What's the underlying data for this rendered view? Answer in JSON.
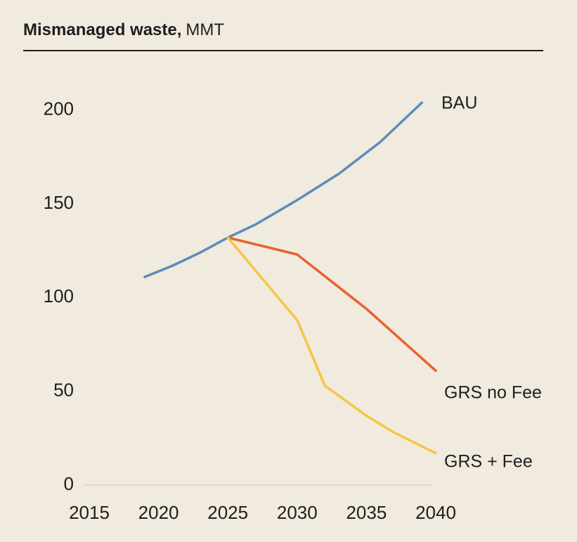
{
  "chart_data": {
    "type": "line",
    "title": "Mismanaged waste,",
    "subtitle": "MMT",
    "xlim": [
      2015,
      2040
    ],
    "xticks": [
      2015,
      2020,
      2025,
      2030,
      2035,
      2040
    ],
    "ylim": [
      0,
      210
    ],
    "yticks": [
      0,
      50,
      100,
      150,
      200
    ],
    "series": [
      {
        "name": "BAU",
        "color": "#5b8db8",
        "x": [
          2019,
          2021,
          2023,
          2025,
          2027,
          2030,
          2033,
          2036,
          2039
        ],
        "values": [
          111,
          117,
          124,
          132,
          139,
          152,
          166,
          183,
          204
        ]
      },
      {
        "name": "GRS no Fee",
        "color": "#e8622c",
        "x": [
          2025,
          2030,
          2035,
          2040
        ],
        "values": [
          132,
          123,
          94,
          61
        ]
      },
      {
        "name": "GRS + Fee",
        "color": "#f7c543",
        "x": [
          2025,
          2030,
          2032,
          2035,
          2037,
          2040
        ],
        "values": [
          132,
          88,
          53,
          37,
          28,
          17
        ]
      }
    ]
  }
}
